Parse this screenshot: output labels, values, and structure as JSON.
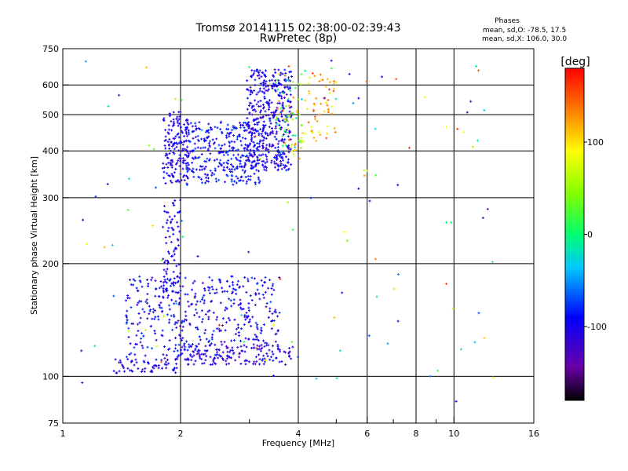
{
  "chart_data": {
    "type": "scatter",
    "title": "Tromsø 20141115 02:38:00-02:39:43",
    "subtitle": "RwPretec (8p)",
    "phases": {
      "heading": "Phases",
      "line1": "mean, sd,O: -78.5, 17.5",
      "line2": "mean, sd,X: 106.0, 30.0"
    },
    "xlabel": "Frequency [MHz]",
    "ylabel": "Stationary phase Virtual Height [km]",
    "x_scale": "log",
    "y_scale": "log",
    "xlim": [
      1,
      16
    ],
    "ylim": [
      75,
      750
    ],
    "xticks": [
      1,
      2,
      4,
      6,
      8,
      10,
      16
    ],
    "xtick_labels": [
      "1",
      "2",
      "4",
      "6",
      "8",
      "10",
      "16"
    ],
    "xminor": [
      3,
      5,
      7,
      9
    ],
    "yticks": [
      75,
      100,
      200,
      300,
      400,
      500,
      600,
      750
    ],
    "ytick_labels": [
      "75",
      "100",
      "200",
      "300",
      "400",
      "500",
      "600",
      "750"
    ],
    "grid": true,
    "colorbar": {
      "label": "[deg]",
      "range": [
        -180,
        180
      ],
      "ticks": [
        100,
        0,
        -100
      ],
      "tick_labels": [
        "100",
        "0",
        "-100"
      ]
    },
    "clusters": [
      {
        "fmin": 1.35,
        "fmax": 2.0,
        "hmin": 102,
        "hmax": 112,
        "phase": [
          -120,
          -90
        ],
        "n": 60
      },
      {
        "fmin": 2.0,
        "fmax": 3.9,
        "hmin": 107,
        "hmax": 122,
        "phase": [
          -130,
          -95
        ],
        "n": 120
      },
      {
        "fmin": 1.45,
        "fmax": 3.6,
        "hmin": 110,
        "hmax": 185,
        "phase": [
          -130,
          -70
        ],
        "n": 450
      },
      {
        "fmin": 1.8,
        "fmax": 2.0,
        "hmin": 160,
        "hmax": 300,
        "phase": [
          -120,
          -85
        ],
        "n": 90
      },
      {
        "fmin": 1.8,
        "fmax": 2.1,
        "hmin": 325,
        "hmax": 510,
        "phase": [
          -120,
          -90
        ],
        "n": 160
      },
      {
        "fmin": 2.05,
        "fmax": 3.2,
        "hmin": 325,
        "hmax": 480,
        "phase": [
          -120,
          -70
        ],
        "n": 330
      },
      {
        "fmin": 2.95,
        "fmax": 3.85,
        "hmin": 355,
        "hmax": 660,
        "phase": [
          -130,
          -80
        ],
        "n": 420
      },
      {
        "fmin": 3.5,
        "fmax": 4.1,
        "hmin": 380,
        "hmax": 650,
        "phase": [
          -40,
          140
        ],
        "n": 70
      },
      {
        "fmin": 4.1,
        "fmax": 5.0,
        "hmin": 420,
        "hmax": 650,
        "phase": [
          80,
          160
        ],
        "n": 60
      },
      {
        "fmin": 1.1,
        "fmax": 12.8,
        "hmin": 78,
        "hmax": 700,
        "phase": [
          -140,
          170
        ],
        "n": 120
      }
    ]
  }
}
